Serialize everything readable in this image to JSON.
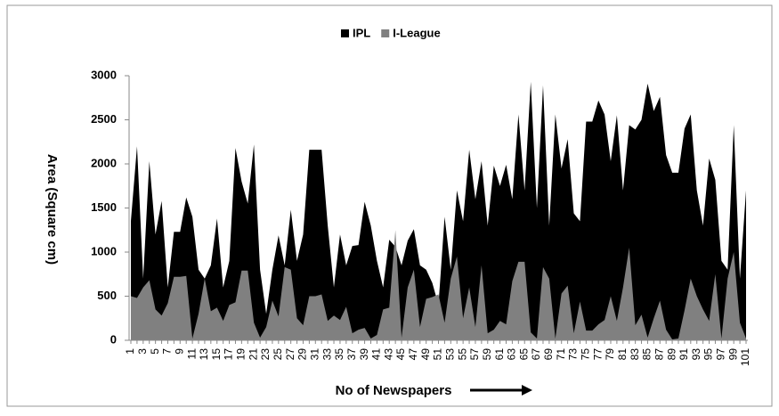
{
  "chart_data": {
    "type": "area",
    "y_label": "Area (Square cm)",
    "x_label": "No of Newspapers",
    "legend": "top",
    "grid": false,
    "categories": [
      1,
      null,
      3,
      null,
      5,
      null,
      7,
      null,
      9,
      null,
      11,
      null,
      13,
      null,
      15,
      null,
      17,
      null,
      19,
      null,
      21,
      null,
      23,
      null,
      25,
      null,
      27,
      null,
      29,
      null,
      31,
      null,
      33,
      null,
      35,
      null,
      37,
      null,
      39,
      null,
      41,
      null,
      43,
      null,
      45,
      null,
      47,
      null,
      49,
      null,
      51,
      null,
      53,
      null,
      55,
      null,
      57,
      null,
      59,
      null,
      61,
      null,
      63,
      null,
      65,
      null,
      67,
      null,
      69,
      null,
      71,
      null,
      73,
      null,
      75,
      null,
      77,
      null,
      79,
      null,
      81,
      null,
      83,
      null,
      85,
      null,
      87,
      null,
      89,
      null,
      91,
      null,
      93,
      null,
      95,
      null,
      97,
      null,
      99,
      null,
      101
    ],
    "ylim": [
      0,
      3000
    ],
    "yticks": [
      0,
      500,
      1000,
      1500,
      2000,
      2500,
      3000
    ],
    "series": [
      {
        "name": "IPL",
        "color": "#000000",
        "values": [
          1350,
          2200,
          700,
          2030,
          1200,
          1580,
          600,
          1230,
          1230,
          1620,
          1400,
          800,
          700,
          850,
          1380,
          600,
          900,
          2180,
          1800,
          1550,
          2220,
          800,
          300,
          800,
          1190,
          850,
          1480,
          900,
          1200,
          2160,
          2160,
          2160,
          1300,
          600,
          1200,
          850,
          1070,
          1080,
          1570,
          1300,
          900,
          600,
          1140,
          1060,
          850,
          1130,
          1260,
          850,
          800,
          650,
          400,
          1400,
          800,
          1700,
          1350,
          2160,
          1600,
          2030,
          1300,
          1980,
          1750,
          1990,
          1600,
          2560,
          1700,
          2930,
          1500,
          2890,
          1300,
          2560,
          1950,
          2280,
          1440,
          1350,
          2480,
          2480,
          2720,
          2560,
          2030,
          2550,
          1700,
          2440,
          2390,
          2500,
          2910,
          2600,
          2760,
          2100,
          1900,
          1900,
          2400,
          2560,
          1700,
          1300,
          2060,
          1820,
          900,
          800,
          2440,
          700,
          1700
        ]
      },
      {
        "name": "I-League",
        "color": "#808080",
        "values": [
          500,
          480,
          600,
          680,
          350,
          280,
          420,
          720,
          720,
          730,
          20,
          300,
          700,
          330,
          370,
          220,
          400,
          430,
          790,
          790,
          200,
          30,
          150,
          450,
          270,
          830,
          800,
          250,
          170,
          500,
          500,
          520,
          220,
          280,
          230,
          380,
          80,
          120,
          140,
          20,
          60,
          350,
          370,
          1250,
          30,
          600,
          800,
          150,
          470,
          490,
          520,
          200,
          700,
          950,
          250,
          600,
          150,
          850,
          80,
          120,
          220,
          180,
          670,
          890,
          890,
          90,
          20,
          830,
          700,
          20,
          530,
          620,
          80,
          440,
          110,
          110,
          180,
          230,
          500,
          220,
          600,
          1050,
          170,
          290,
          30,
          250,
          450,
          120,
          10,
          20,
          340,
          700,
          500,
          350,
          220,
          750,
          20,
          700,
          1000,
          200,
          20
        ]
      }
    ]
  }
}
